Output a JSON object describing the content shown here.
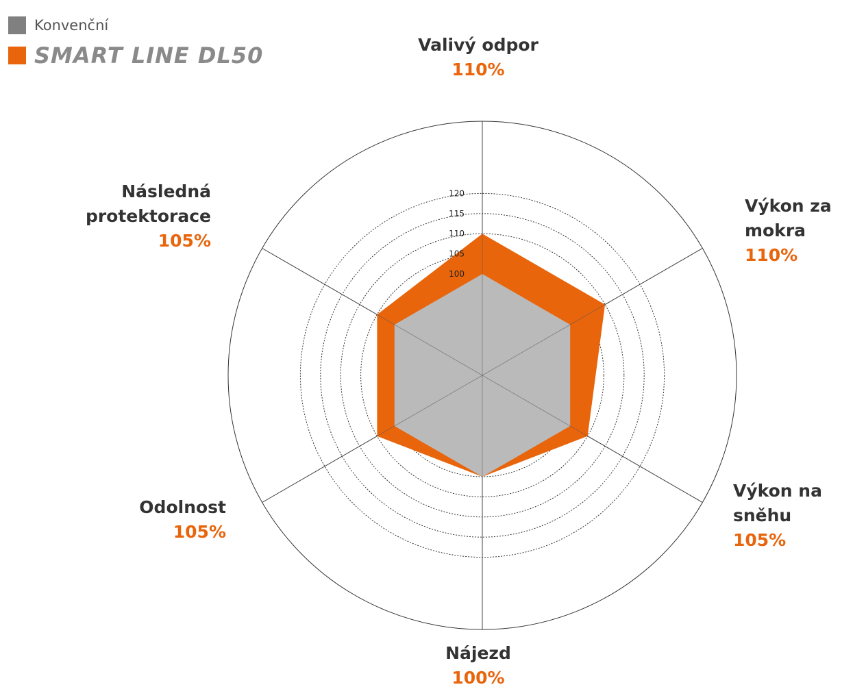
{
  "legend": {
    "items": [
      {
        "label": "Konvenční",
        "color": "#808080"
      },
      {
        "label": "SMART LINE DL50",
        "color": "#e8650c"
      }
    ]
  },
  "chart_data": {
    "type": "radar",
    "axes": [
      "Valivý odpor",
      "Výkon za mokra",
      "Výkon na sněhu",
      "Nájezd",
      "Odolnost",
      "Následná protektorace"
    ],
    "r_ticks": [
      100,
      105,
      110,
      115,
      120
    ],
    "r_range": [
      90,
      120
    ],
    "series": [
      {
        "name": "Konvenční",
        "values": [
          100,
          100,
          100,
          100,
          100,
          100
        ],
        "color": "#bababa"
      },
      {
        "name": "SMART LINE DL50",
        "values": [
          110,
          110,
          105,
          100,
          105,
          105
        ],
        "color": "#e8650c"
      }
    ],
    "axis_labels": [
      {
        "name": "Valivý odpor",
        "value": "110%"
      },
      {
        "name": "Výkon za\nmokra",
        "value": "110%"
      },
      {
        "name": "Výkon na\nsněhu",
        "value": "105%"
      },
      {
        "name": "Nájezd",
        "value": "100%"
      },
      {
        "name": "Odolnost",
        "value": "105%"
      },
      {
        "name": "Následná\nprotektorace",
        "value": "105%"
      }
    ]
  }
}
